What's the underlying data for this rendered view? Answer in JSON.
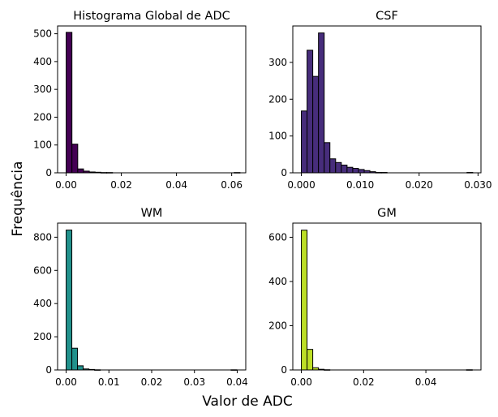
{
  "figure": {
    "supxlabel": "Valor de ADC",
    "supylabel": "Frequência",
    "colors": {
      "axis": "#000000",
      "bar_edge": "#000000",
      "background": "#ffffff"
    }
  },
  "chart_data": [
    {
      "type": "bar",
      "title": "Histograma Global de ADC",
      "color": "#440154",
      "bin_start": 0.0,
      "bin_width": 0.0021,
      "values": [
        505,
        103,
        14,
        6,
        3,
        2,
        1,
        1,
        0,
        0,
        0,
        0,
        0,
        0,
        0,
        0,
        0,
        0,
        0,
        0,
        0,
        0,
        0,
        0,
        0,
        0,
        0,
        0,
        0,
        1
      ],
      "xlim": [
        -0.0031,
        0.0651
      ],
      "ylim": [
        0,
        528
      ],
      "xticks": [
        0.0,
        0.02,
        0.04,
        0.06
      ],
      "xtick_labels": [
        "0.00",
        "0.02",
        "0.04",
        "0.06"
      ],
      "yticks": [
        0,
        100,
        200,
        300,
        400,
        500
      ],
      "ytick_labels": [
        "0",
        "100",
        "200",
        "300",
        "400",
        "500"
      ]
    },
    {
      "type": "bar",
      "title": "CSF",
      "color": "#472d7b",
      "bin_start": 0.0,
      "bin_width": 0.00097,
      "values": [
        168,
        333,
        262,
        380,
        82,
        38,
        28,
        21,
        15,
        12,
        9,
        6,
        3,
        1,
        1,
        0,
        0,
        0,
        0,
        0,
        0,
        0,
        0,
        0,
        0,
        0,
        0,
        0,
        0,
        1
      ],
      "xlim": [
        -0.00145,
        0.0305
      ],
      "ylim": [
        0,
        399
      ],
      "xticks": [
        0.0,
        0.01,
        0.02,
        0.03
      ],
      "xtick_labels": [
        "0.000",
        "0.010",
        "0.020",
        "0.030"
      ],
      "yticks": [
        0,
        100,
        200,
        300
      ],
      "ytick_labels": [
        "0",
        "100",
        "200",
        "300"
      ]
    },
    {
      "type": "bar",
      "title": "WM",
      "color": "#21918c",
      "bin_start": 0.0,
      "bin_width": 0.00133,
      "values": [
        843,
        131,
        25,
        6,
        3,
        1,
        0,
        0,
        0,
        0,
        0,
        0,
        0,
        0,
        0,
        0,
        0,
        0,
        0,
        0,
        0,
        0,
        0,
        0,
        0,
        0,
        0,
        0,
        0,
        1
      ],
      "xlim": [
        -0.002,
        0.042
      ],
      "ylim": [
        0,
        885
      ],
      "xticks": [
        0.0,
        0.01,
        0.02,
        0.03,
        0.04
      ],
      "xtick_labels": [
        "0.00",
        "0.01",
        "0.02",
        "0.03",
        "0.04"
      ],
      "yticks": [
        0,
        200,
        400,
        600,
        800
      ],
      "ytick_labels": [
        "0",
        "200",
        "400",
        "600",
        "800"
      ]
    },
    {
      "type": "bar",
      "title": "GM",
      "color": "#bddf26",
      "bin_start": 0.0,
      "bin_width": 0.00183,
      "values": [
        632,
        93,
        10,
        3,
        1,
        0,
        0,
        0,
        0,
        0,
        0,
        0,
        0,
        0,
        0,
        0,
        0,
        0,
        0,
        0,
        0,
        0,
        0,
        0,
        0,
        0,
        0,
        0,
        0,
        1
      ],
      "xlim": [
        -0.00275,
        0.0577
      ],
      "ylim": [
        0,
        664
      ],
      "xticks": [
        0.0,
        0.02,
        0.04
      ],
      "xtick_labels": [
        "0.00",
        "0.02",
        "0.04"
      ],
      "yticks": [
        0,
        200,
        400,
        600
      ],
      "ytick_labels": [
        "0",
        "200",
        "400",
        "600"
      ]
    }
  ]
}
